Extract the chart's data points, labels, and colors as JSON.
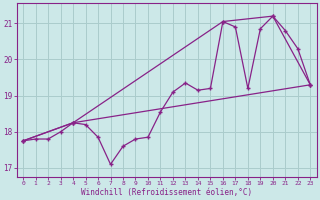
{
  "xlabel": "Windchill (Refroidissement éolien,°C)",
  "bg_color": "#cce8e8",
  "grid_color": "#aacccc",
  "line_color": "#882288",
  "xlim": [
    -0.5,
    23.5
  ],
  "ylim": [
    16.75,
    21.55
  ],
  "yticks": [
    17,
    18,
    19,
    20,
    21
  ],
  "xticks": [
    0,
    1,
    2,
    3,
    4,
    5,
    6,
    7,
    8,
    9,
    10,
    11,
    12,
    13,
    14,
    15,
    16,
    17,
    18,
    19,
    20,
    21,
    22,
    23
  ],
  "series1_x": [
    0,
    1,
    2,
    3,
    4,
    5,
    6,
    7,
    8,
    9,
    10,
    11,
    12,
    13,
    14,
    15,
    16,
    17,
    18,
    19,
    20,
    21,
    22,
    23
  ],
  "series1_y": [
    17.75,
    17.8,
    17.8,
    18.0,
    18.25,
    18.2,
    17.85,
    17.1,
    17.6,
    17.8,
    17.85,
    18.55,
    19.1,
    19.35,
    19.15,
    19.2,
    21.05,
    20.9,
    19.2,
    20.85,
    21.2,
    20.8,
    20.3,
    19.3
  ],
  "series2_x": [
    0,
    4,
    23
  ],
  "series2_y": [
    17.75,
    18.25,
    19.3
  ],
  "series3_x": [
    0,
    4,
    16,
    20,
    23
  ],
  "series3_y": [
    17.75,
    18.25,
    21.05,
    21.2,
    19.3
  ]
}
